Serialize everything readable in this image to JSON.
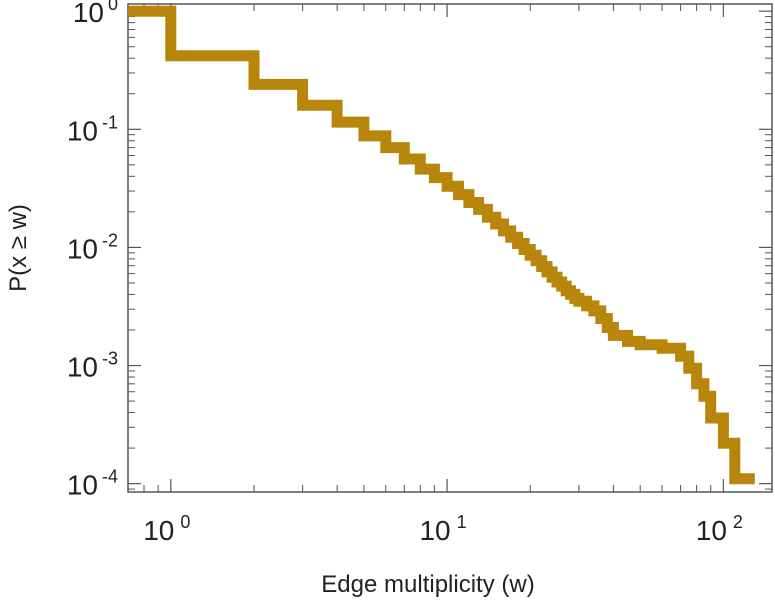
{
  "chart_data": {
    "type": "line",
    "step": true,
    "xscale": "log",
    "yscale": "log",
    "xlim": [
      0.7,
      150
    ],
    "ylim": [
      8.5e-05,
      1.15
    ],
    "xlabel": "Edge multiplicity (w)",
    "ylabel": "P(x ≥ w)",
    "grid": false,
    "line_color": "#b8860b",
    "x_ticks": [
      {
        "value": 1,
        "base": "10",
        "exp": "0"
      },
      {
        "value": 10,
        "base": "10",
        "exp": "1"
      },
      {
        "value": 100,
        "base": "10",
        "exp": "2"
      }
    ],
    "y_ticks": [
      {
        "value": 1,
        "base": "10",
        "exp": "0"
      },
      {
        "value": 0.1,
        "base": "10",
        "exp": "-1"
      },
      {
        "value": 0.01,
        "base": "10",
        "exp": "-2"
      },
      {
        "value": 0.001,
        "base": "10",
        "exp": "-3"
      },
      {
        "value": 0.0001,
        "base": "10",
        "exp": "-4"
      }
    ],
    "series": [
      {
        "x": [
          0.7,
          1,
          2,
          3,
          4,
          5,
          6,
          7,
          8,
          9,
          10,
          11,
          12,
          13,
          14,
          15,
          16,
          17,
          18,
          19,
          20,
          21,
          22,
          23,
          24,
          25,
          26,
          27,
          28,
          29,
          30,
          32,
          34,
          36,
          38,
          40,
          45,
          50,
          60,
          70,
          75,
          80,
          85,
          90,
          100,
          110,
          130
        ],
        "y": [
          1.0,
          0.42,
          0.24,
          0.16,
          0.115,
          0.088,
          0.07,
          0.056,
          0.046,
          0.039,
          0.033,
          0.028,
          0.024,
          0.021,
          0.018,
          0.0158,
          0.0138,
          0.0122,
          0.0108,
          0.0096,
          0.0086,
          0.0077,
          0.0069,
          0.0062,
          0.0056,
          0.0051,
          0.0047,
          0.0043,
          0.004,
          0.0037,
          0.0035,
          0.0032,
          0.0029,
          0.0025,
          0.0021,
          0.0018,
          0.0016,
          0.0015,
          0.0014,
          0.0012,
          0.00095,
          0.0007,
          0.00055,
          0.00036,
          0.00022,
          0.00011,
          0.00011
        ]
      }
    ]
  }
}
